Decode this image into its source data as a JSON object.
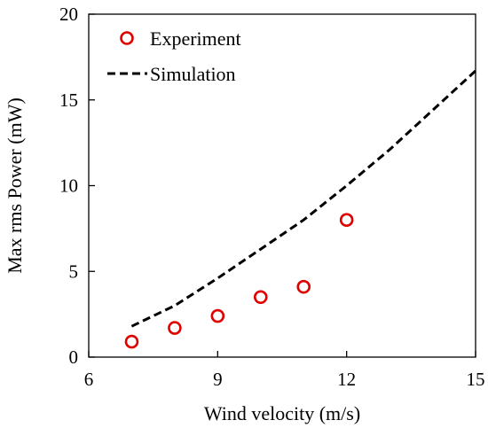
{
  "chart_data": {
    "type": "scatter",
    "title": "",
    "xlabel": "Wind velocity (m/s)",
    "ylabel": "Max rms Power (mW)",
    "xlim": [
      6,
      15
    ],
    "ylim": [
      0,
      20
    ],
    "xticks": [
      6,
      9,
      12,
      15
    ],
    "yticks": [
      0,
      5,
      10,
      15,
      20
    ],
    "grid": false,
    "legend_position": "top-left",
    "series": [
      {
        "name": "Experiment",
        "style": "scatter",
        "marker": "open-circle",
        "color": "#e00000",
        "x": [
          7,
          8,
          9,
          10,
          11,
          12
        ],
        "y": [
          0.9,
          1.7,
          2.4,
          3.5,
          4.1,
          8.0
        ]
      },
      {
        "name": "Simulation",
        "style": "line",
        "dash": "dashed",
        "color": "#000000",
        "x": [
          7,
          8,
          9,
          10,
          11,
          12,
          13,
          14,
          15
        ],
        "y": [
          1.8,
          3.0,
          4.6,
          6.3,
          8.0,
          10.0,
          12.1,
          14.4,
          16.7
        ]
      }
    ]
  }
}
